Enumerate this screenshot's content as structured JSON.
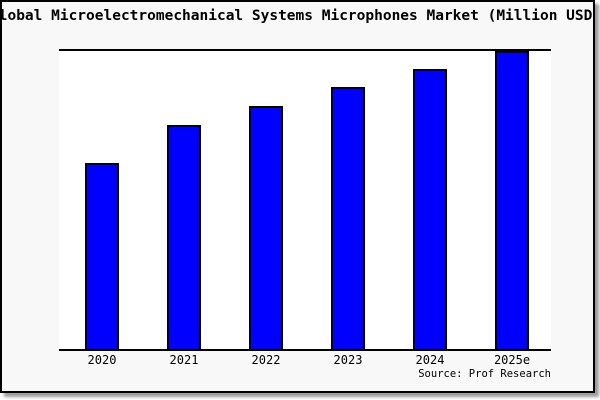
{
  "window": {
    "background": "#f8f8f8",
    "frame_border_color": "#000000",
    "shadow_color": "#9c9c9c"
  },
  "title": {
    "text": "Global Microelectromechanical Systems Microphones Market (Million USD)",
    "visible_clipped_text": "obal Microelectromechanical Systems Microphones Market (Million USD"
  },
  "source_note": {
    "text": "Source: Prof Research"
  },
  "chart_data": {
    "type": "bar",
    "title": "Global Microelectromechanical Systems Microphones Market (Million USD)",
    "categories": [
      "2020",
      "2021",
      "2022",
      "2023",
      "2024",
      "2025e"
    ],
    "values": [
      62.4,
      75.2,
      81.7,
      87.9,
      94.1,
      100
    ],
    "value_scale": "percent of tallest bar (2025e); no y-axis tick labels are shown in the image",
    "xlabel": "",
    "ylabel": "",
    "grid": false,
    "legend": false,
    "bar_color": "#0000FF",
    "bar_border_color": "#000000",
    "plot_background": "#FFFFFF",
    "axis_line_color": "#000000",
    "visible_axis_lines": [
      "top",
      "bottom"
    ]
  }
}
